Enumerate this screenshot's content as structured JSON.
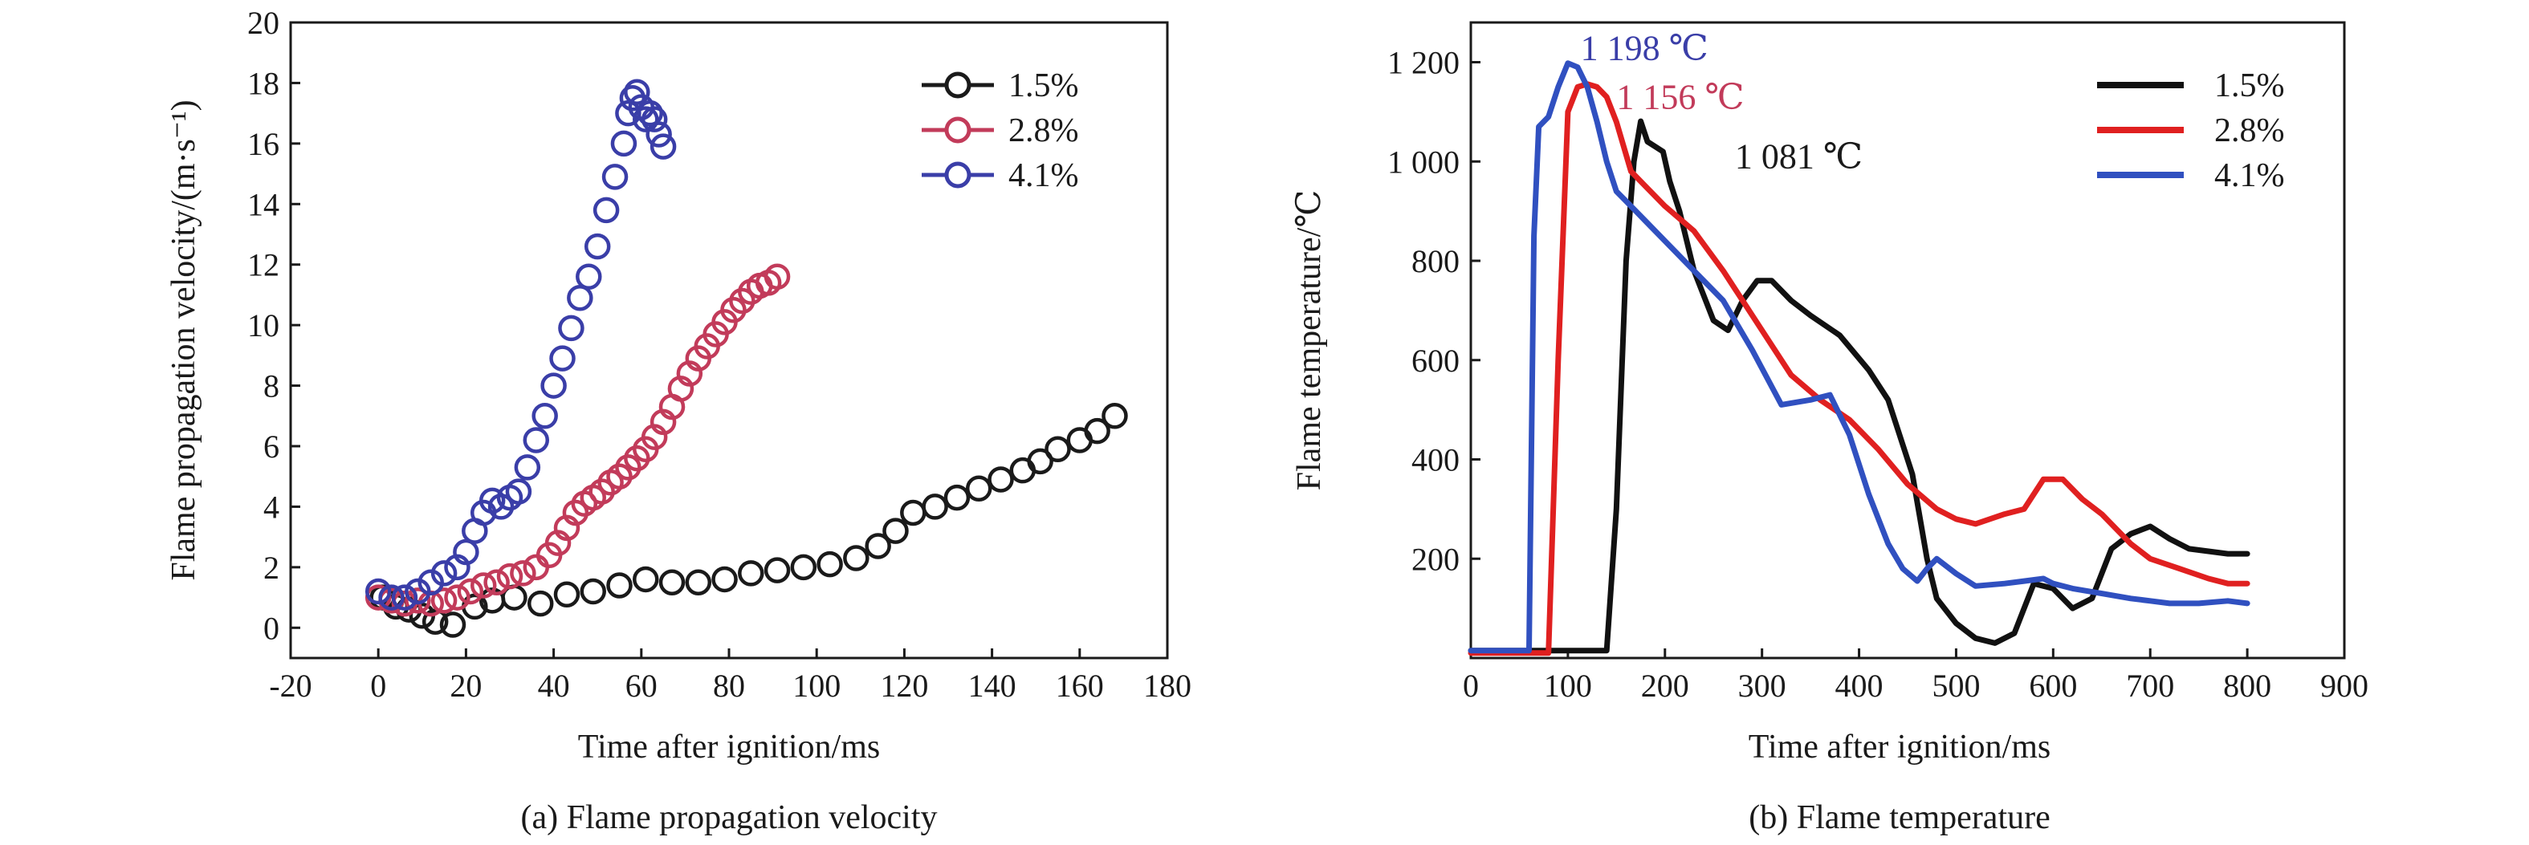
{
  "chart_data": [
    {
      "type": "scatter",
      "caption": "(a) Flame propagation velocity",
      "xlabel": "Time after ignition/ms",
      "ylabel": "Flame propagation velocity/(m·s⁻¹)",
      "xlim": [
        -20,
        180
      ],
      "ylim": [
        -1,
        20
      ],
      "xticks": [
        -20,
        0,
        20,
        40,
        60,
        80,
        100,
        120,
        140,
        160,
        180
      ],
      "yticks": [
        0,
        2,
        4,
        6,
        8,
        10,
        12,
        14,
        16,
        18,
        20
      ],
      "legend_position": "top-right",
      "marker": "open-circle",
      "series": [
        {
          "name": "1.5%",
          "color": "#1a1a1a",
          "x": [
            1,
            4,
            7,
            10,
            13,
            17,
            22,
            26,
            31,
            37,
            43,
            49,
            55,
            61,
            67,
            73,
            79,
            85,
            91,
            97,
            103,
            109,
            114,
            118,
            122,
            127,
            132,
            137,
            142,
            147,
            151,
            155,
            160,
            164,
            168
          ],
          "y": [
            1.0,
            0.7,
            0.6,
            0.4,
            0.2,
            0.1,
            0.7,
            0.9,
            1.0,
            0.8,
            1.1,
            1.2,
            1.4,
            1.6,
            1.5,
            1.5,
            1.6,
            1.8,
            1.9,
            2.0,
            2.1,
            2.3,
            2.7,
            3.2,
            3.8,
            4.0,
            4.3,
            4.6,
            4.9,
            5.2,
            5.5,
            5.9,
            6.2,
            6.5,
            7.0
          ]
        },
        {
          "name": "2.8%",
          "color": "#c23b5a",
          "x": [
            0,
            3,
            6,
            9,
            12,
            15,
            18,
            21,
            24,
            27,
            30,
            33,
            36,
            39,
            41,
            43,
            45,
            47,
            49,
            51,
            53,
            55,
            57,
            59,
            61,
            63,
            65,
            67,
            69,
            71,
            73,
            75,
            77,
            79,
            81,
            83,
            85,
            87,
            89,
            91
          ],
          "y": [
            1.0,
            0.9,
            0.8,
            0.9,
            0.8,
            0.9,
            1.0,
            1.2,
            1.4,
            1.5,
            1.7,
            1.8,
            2.0,
            2.4,
            2.8,
            3.3,
            3.8,
            4.1,
            4.3,
            4.5,
            4.8,
            5.0,
            5.3,
            5.6,
            5.9,
            6.3,
            6.8,
            7.3,
            7.9,
            8.4,
            8.9,
            9.3,
            9.7,
            10.1,
            10.5,
            10.8,
            11.1,
            11.3,
            11.4,
            11.6
          ]
        },
        {
          "name": "4.1%",
          "color": "#3a3ea8",
          "x": [
            0,
            3,
            6,
            9,
            12,
            15,
            18,
            20,
            22,
            24,
            26,
            28,
            30,
            32,
            34,
            36,
            38,
            40,
            42,
            44,
            46,
            48,
            50,
            52,
            54,
            56,
            57,
            58,
            59,
            60,
            61,
            62,
            63,
            64,
            65
          ],
          "y": [
            1.2,
            1.0,
            1.0,
            1.2,
            1.5,
            1.8,
            2.0,
            2.5,
            3.2,
            3.8,
            4.2,
            4.0,
            4.3,
            4.5,
            5.3,
            6.2,
            7.0,
            8.0,
            8.9,
            9.9,
            10.9,
            11.6,
            12.6,
            13.8,
            14.9,
            16.0,
            17.0,
            17.5,
            17.7,
            17.2,
            16.8,
            17.0,
            16.8,
            16.3,
            15.9
          ]
        }
      ]
    },
    {
      "type": "line",
      "caption": "(b) Flame temperature",
      "xlabel": "Time after ignition/ms",
      "ylabel": "Flame temperature/℃",
      "xlim": [
        0,
        900
      ],
      "ylim": [
        0,
        1280
      ],
      "xticks": [
        0,
        100,
        200,
        300,
        400,
        500,
        600,
        700,
        800,
        900
      ],
      "yticks": [
        200,
        400,
        600,
        800,
        1000,
        1200
      ],
      "ytick_labels": [
        "200",
        "400",
        "600",
        "800",
        "1 000",
        "1 200"
      ],
      "legend_position": "top-right",
      "annotations": [
        {
          "text": "1 198 ℃",
          "color": "#3a3ea8",
          "x": 113,
          "y": 1198
        },
        {
          "text": "1 156 ℃",
          "color": "#c23b5a",
          "x": 150,
          "y": 1100
        },
        {
          "text": "1 081 ℃",
          "color": "#1a1a1a",
          "x": 272,
          "y": 980
        }
      ],
      "series": [
        {
          "name": "1.5%",
          "color": "#111111",
          "x": [
            0,
            50,
            100,
            130,
            140,
            150,
            160,
            168,
            175,
            182,
            190,
            198,
            205,
            215,
            230,
            250,
            265,
            280,
            295,
            310,
            330,
            350,
            380,
            410,
            430,
            455,
            470,
            480,
            500,
            520,
            540,
            560,
            580,
            600,
            620,
            640,
            660,
            680,
            700,
            720,
            740,
            760,
            780,
            800
          ],
          "y": [
            15,
            15,
            15,
            15,
            15,
            300,
            800,
            1000,
            1081,
            1040,
            1030,
            1020,
            960,
            900,
            780,
            680,
            660,
            720,
            760,
            760,
            720,
            690,
            650,
            580,
            520,
            370,
            200,
            120,
            70,
            40,
            30,
            50,
            150,
            140,
            100,
            120,
            220,
            250,
            265,
            240,
            220,
            215,
            210,
            210
          ]
        },
        {
          "name": "2.8%",
          "color": "#e02020",
          "x": [
            0,
            40,
            70,
            80,
            90,
            100,
            110,
            120,
            130,
            140,
            150,
            165,
            180,
            200,
            230,
            260,
            290,
            330,
            360,
            390,
            420,
            450,
            480,
            500,
            520,
            550,
            570,
            590,
            610,
            630,
            650,
            680,
            700,
            730,
            760,
            780,
            800
          ],
          "y": [
            10,
            10,
            10,
            10,
            600,
            1100,
            1150,
            1156,
            1150,
            1130,
            1080,
            980,
            950,
            910,
            860,
            780,
            690,
            570,
            520,
            480,
            420,
            350,
            300,
            280,
            270,
            290,
            300,
            360,
            360,
            320,
            290,
            230,
            200,
            180,
            160,
            150,
            150
          ]
        },
        {
          "name": "4.1%",
          "color": "#3050c0",
          "x": [
            0,
            30,
            50,
            60,
            65,
            70,
            80,
            90,
            100,
            110,
            120,
            130,
            140,
            150,
            165,
            180,
            200,
            230,
            260,
            290,
            320,
            350,
            370,
            390,
            410,
            430,
            445,
            460,
            470,
            480,
            500,
            520,
            550,
            570,
            590,
            600,
            620,
            650,
            680,
            700,
            720,
            750,
            780,
            800
          ],
          "y": [
            15,
            15,
            15,
            15,
            850,
            1070,
            1090,
            1150,
            1198,
            1190,
            1150,
            1080,
            1000,
            940,
            910,
            880,
            840,
            780,
            720,
            620,
            510,
            520,
            530,
            450,
            330,
            230,
            180,
            155,
            180,
            200,
            170,
            145,
            150,
            155,
            160,
            150,
            140,
            130,
            120,
            115,
            110,
            110,
            115,
            110
          ]
        }
      ]
    }
  ]
}
